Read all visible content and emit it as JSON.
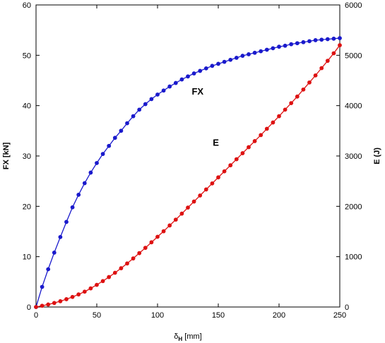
{
  "chart_data": {
    "type": "line",
    "title": "",
    "xlabel": {
      "main": "δ",
      "sub": "H",
      "unit": " [mm]"
    },
    "ylabel": "FX [kN]",
    "y2label": "E (J)",
    "xlim": [
      0,
      250
    ],
    "ylim": [
      0,
      60
    ],
    "y2lim": [
      0,
      6000
    ],
    "xticks": [
      "0",
      "50",
      "100",
      "150",
      "200",
      "250"
    ],
    "yticks": [
      "0",
      "10",
      "20",
      "30",
      "40",
      "50",
      "60"
    ],
    "y2ticks": [
      "0",
      "1000",
      "2000",
      "3000",
      "4000",
      "5000",
      "6000"
    ],
    "grid": false,
    "legend": "none",
    "x": [
      0,
      5,
      10,
      15,
      20,
      25,
      30,
      35,
      40,
      45,
      50,
      55,
      60,
      65,
      70,
      75,
      80,
      85,
      90,
      95,
      100,
      105,
      110,
      115,
      120,
      125,
      130,
      135,
      140,
      145,
      150,
      155,
      160,
      165,
      170,
      175,
      180,
      185,
      190,
      195,
      200,
      205,
      210,
      215,
      220,
      225,
      230,
      235,
      240,
      245,
      250
    ],
    "series": [
      {
        "name": "FX",
        "axis": "left",
        "color": "#1a1acc",
        "label_position": {
          "x": 133,
          "y": 42.2
        },
        "values": [
          0,
          4.0,
          7.5,
          10.8,
          13.9,
          16.9,
          19.8,
          22.3,
          24.6,
          26.7,
          28.6,
          30.4,
          32.0,
          33.6,
          35.0,
          36.5,
          37.9,
          39.2,
          40.3,
          41.3,
          42.2,
          43.0,
          43.8,
          44.5,
          45.2,
          45.8,
          46.4,
          46.9,
          47.4,
          47.9,
          48.3,
          48.7,
          49.1,
          49.5,
          49.9,
          50.2,
          50.5,
          50.8,
          51.1,
          51.4,
          51.7,
          51.9,
          52.2,
          52.4,
          52.6,
          52.8,
          53.0,
          53.1,
          53.2,
          53.3,
          53.4
        ]
      },
      {
        "name": "E",
        "axis": "right",
        "color": "#dd1111",
        "label_position": {
          "x": 148,
          "y": 3200
        },
        "values": [
          0,
          25,
          50,
          80,
          115,
          155,
          200,
          250,
          305,
          370,
          440,
          515,
          595,
          680,
          770,
          865,
          965,
          1070,
          1175,
          1285,
          1395,
          1505,
          1620,
          1735,
          1855,
          1975,
          2095,
          2215,
          2335,
          2455,
          2575,
          2695,
          2815,
          2935,
          3055,
          3175,
          3295,
          3415,
          3540,
          3665,
          3790,
          3920,
          4050,
          4180,
          4320,
          4460,
          4600,
          4745,
          4890,
          5040,
          5200
        ]
      }
    ]
  }
}
